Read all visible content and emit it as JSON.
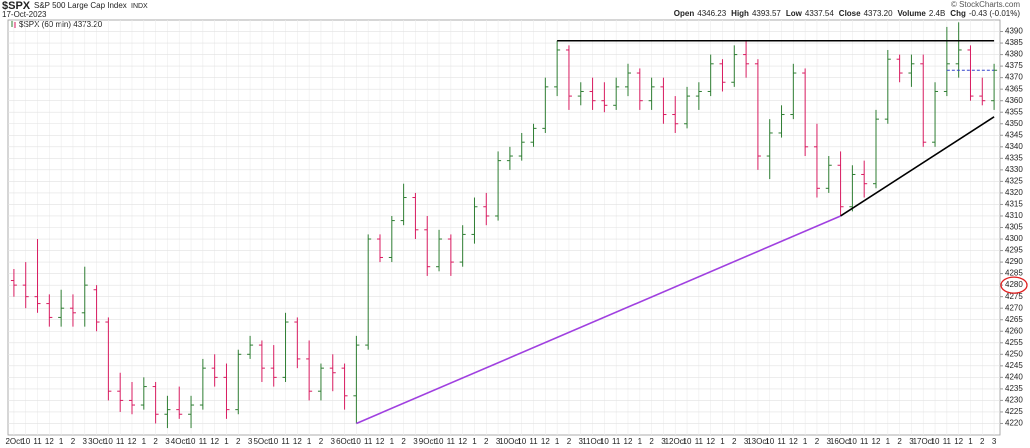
{
  "chart_data": {
    "type": "ohlc",
    "symbol": "$SPX",
    "title": "S&P 500 Large Cap Index",
    "exchange": "INDX",
    "date": "17-Oct-2023",
    "source": "© StockCharts.com",
    "quote": [
      {
        "label": "Open",
        "value": "4346.23"
      },
      {
        "label": "High",
        "value": "4393.57"
      },
      {
        "label": "Low",
        "value": "4337.54"
      },
      {
        "label": "Close",
        "value": "4373.20"
      },
      {
        "label": "Volume",
        "value": "2.4B"
      },
      {
        "label": "Chg",
        "value": "-0.43 (-0.01%)"
      }
    ],
    "legend": "$SPX (60 min) 4373.20",
    "categories": [
      "2Oct",
      "10",
      "11",
      "12",
      "1",
      "2",
      "3",
      "3Oct",
      "10",
      "11",
      "12",
      "1",
      "2",
      "3",
      "4Oct",
      "10",
      "11",
      "12",
      "1",
      "2",
      "3",
      "5Oct",
      "10",
      "11",
      "12",
      "1",
      "2",
      "3",
      "6Oct",
      "10",
      "11",
      "12",
      "1",
      "2",
      "3",
      "9Oct",
      "10",
      "11",
      "12",
      "1",
      "2",
      "3",
      "10Oct",
      "10",
      "11",
      "12",
      "1",
      "2",
      "3",
      "11Oct",
      "10",
      "11",
      "12",
      "1",
      "2",
      "3",
      "12Oct",
      "10",
      "11",
      "12",
      "1",
      "2",
      "3",
      "13Oct",
      "10",
      "11",
      "12",
      "1",
      "2",
      "3",
      "16Oct",
      "10",
      "11",
      "12",
      "1",
      "2",
      "3",
      "17Oct",
      "10",
      "11",
      "12",
      "1",
      "2",
      "3"
    ],
    "open": [
      4282,
      4280,
      4275,
      4272,
      4266,
      4270,
      4268,
      4278,
      4264,
      4234,
      4230,
      4228,
      4236,
      4224,
      4226,
      4224,
      4228,
      4244,
      4240,
      4226,
      4250,
      4254,
      4244,
      4240,
      4264,
      4248,
      4234,
      4244,
      4244,
      4232,
      4254,
      4300,
      4292,
      4308,
      4318,
      4304,
      4288,
      4300,
      4290,
      4302,
      4314,
      4310,
      4334,
      4336,
      4342,
      4348,
      4366,
      4382,
      4362,
      4364,
      4360,
      4358,
      4366,
      4372,
      4360,
      4366,
      4354,
      4350,
      4362,
      4364,
      4376,
      4368,
      4380,
      4376,
      4336,
      4346,
      4354,
      4372,
      4340,
      4322,
      4332,
      4314,
      4328,
      4324,
      4352,
      4378,
      4372,
      4376,
      4342,
      4364,
      4376,
      4382,
      4362,
      4360
    ],
    "high": [
      4287,
      4290,
      4300,
      4276,
      4278,
      4276,
      4288,
      4280,
      4266,
      4242,
      4238,
      4240,
      4238,
      4232,
      4236,
      4232,
      4248,
      4250,
      4246,
      4252,
      4258,
      4256,
      4254,
      4268,
      4266,
      4256,
      4246,
      4250,
      4246,
      4258,
      4302,
      4302,
      4310,
      4324,
      4320,
      4310,
      4304,
      4302,
      4306,
      4318,
      4320,
      4338,
      4340,
      4346,
      4350,
      4370,
      4386,
      4384,
      4368,
      4370,
      4368,
      4370,
      4376,
      4374,
      4370,
      4370,
      4362,
      4366,
      4368,
      4380,
      4378,
      4384,
      4386,
      4378,
      4352,
      4358,
      4376,
      4374,
      4350,
      4336,
      4338,
      4332,
      4334,
      4356,
      4382,
      4380,
      4380,
      4380,
      4368,
      4392,
      4394,
      4384,
      4370,
      4376
    ],
    "low": [
      4275,
      4270,
      4268,
      4262,
      4262,
      4262,
      4262,
      4260,
      4230,
      4225,
      4224,
      4226,
      4220,
      4218,
      4222,
      4218,
      4226,
      4236,
      4222,
      4224,
      4248,
      4238,
      4236,
      4238,
      4244,
      4230,
      4230,
      4234,
      4226,
      4220,
      4252,
      4290,
      4290,
      4306,
      4300,
      4284,
      4286,
      4284,
      4288,
      4298,
      4306,
      4308,
      4330,
      4334,
      4340,
      4346,
      4362,
      4356,
      4358,
      4356,
      4355,
      4356,
      4362,
      4356,
      4356,
      4350,
      4346,
      4348,
      4356,
      4362,
      4364,
      4366,
      4370,
      4330,
      4326,
      4344,
      4352,
      4336,
      4318,
      4320,
      4310,
      4312,
      4318,
      4322,
      4350,
      4368,
      4366,
      4340,
      4340,
      4362,
      4370,
      4360,
      4358,
      4356
    ],
    "close": [
      4280,
      4275,
      4272,
      4266,
      4270,
      4268,
      4280,
      4264,
      4234,
      4230,
      4228,
      4236,
      4224,
      4226,
      4224,
      4228,
      4244,
      4240,
      4226,
      4250,
      4254,
      4244,
      4240,
      4264,
      4248,
      4234,
      4244,
      4242,
      4232,
      4254,
      4300,
      4292,
      4308,
      4318,
      4304,
      4288,
      4300,
      4290,
      4302,
      4314,
      4310,
      4334,
      4336,
      4342,
      4348,
      4366,
      4382,
      4362,
      4364,
      4360,
      4358,
      4366,
      4372,
      4360,
      4366,
      4354,
      4350,
      4362,
      4364,
      4376,
      4368,
      4380,
      4376,
      4336,
      4346,
      4354,
      4372,
      4340,
      4322,
      4332,
      4314,
      4328,
      4324,
      4352,
      4378,
      4372,
      4376,
      4342,
      4364,
      4376,
      4382,
      4362,
      4360,
      4373.2
    ],
    "up_color": "#2e7d32",
    "down_color": "#d81b60",
    "ylim": [
      4215,
      4395
    ],
    "yticks": [
      4220,
      4225,
      4230,
      4235,
      4240,
      4245,
      4250,
      4255,
      4260,
      4265,
      4270,
      4275,
      4280,
      4285,
      4290,
      4295,
      4300,
      4305,
      4310,
      4315,
      4320,
      4325,
      4330,
      4335,
      4340,
      4345,
      4350,
      4355,
      4360,
      4365,
      4370,
      4375,
      4380,
      4385,
      4390
    ],
    "circled_ytick": 4280,
    "grid": true,
    "lines": [
      {
        "color": "#a040e0",
        "dash": false,
        "from": [
          29,
          4220
        ],
        "to": [
          70,
          4310
        ]
      },
      {
        "color": "#000000",
        "dash": false,
        "from": [
          70,
          4310
        ],
        "to": [
          83,
          4353
        ]
      },
      {
        "color": "#000000",
        "dash": false,
        "from": [
          46,
          4386
        ],
        "to": [
          83,
          4386
        ]
      },
      {
        "color": "#3344cc",
        "dash": true,
        "from": [
          79,
          4373.2
        ],
        "to": [
          83,
          4373.2
        ]
      }
    ]
  }
}
